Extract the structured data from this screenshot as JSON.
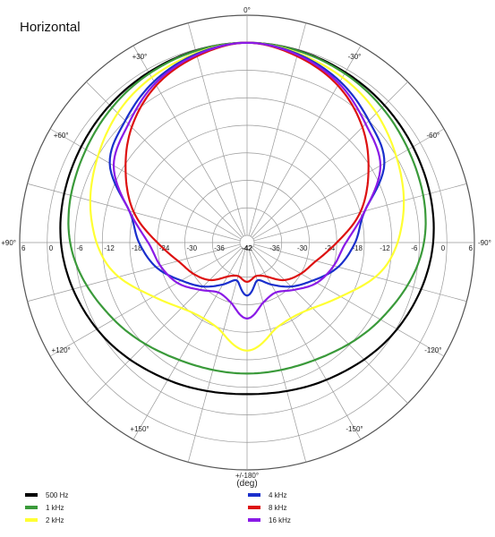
{
  "chart_data": {
    "type": "polar",
    "title": "Horizontal",
    "xlabel": "(deg)",
    "radial_unit": "dB",
    "r_range": [
      -42,
      6
    ],
    "radial_ticks": [
      "6",
      "0",
      "-6",
      "-12",
      "-18",
      "-24",
      "-30",
      "-36",
      "-42"
    ],
    "angle_labels": [
      {
        "deg": 0,
        "label": "0°"
      },
      {
        "deg": 30,
        "label": "-30°"
      },
      {
        "deg": 60,
        "label": "-60°"
      },
      {
        "deg": 90,
        "label": "-90°"
      },
      {
        "deg": 120,
        "label": "-120°"
      },
      {
        "deg": 150,
        "label": "-150°"
      },
      {
        "deg": 180,
        "label": "+/-180°"
      },
      {
        "deg": 210,
        "label": "+150°"
      },
      {
        "deg": 240,
        "label": "+120°"
      },
      {
        "deg": 270,
        "label": "+90°"
      },
      {
        "deg": 300,
        "label": "+60°"
      },
      {
        "deg": 330,
        "label": "+30°"
      }
    ],
    "grid": true,
    "legend_position": "bottom",
    "series": [
      {
        "name": "500 Hz",
        "color": "#000000",
        "angles": [
          0,
          30,
          60,
          90,
          120,
          150,
          180,
          210,
          240,
          270,
          300,
          330
        ],
        "values": [
          0,
          -0.7,
          -1.8,
          -3,
          -5.8,
          -9,
          -10.5,
          -9,
          -5.8,
          -3,
          -1.8,
          -0.7
        ]
      },
      {
        "name": "1 kHz",
        "color": "#3a9a3a",
        "angles": [
          0,
          30,
          60,
          90,
          120,
          150,
          180,
          210,
          240,
          270,
          300,
          330
        ],
        "values": [
          0,
          -1,
          -3,
          -5,
          -10,
          -14,
          -15,
          -14,
          -10,
          -5,
          -3,
          -1
        ]
      },
      {
        "name": "2 kHz",
        "color": "#ffff33",
        "angles": [
          0,
          20,
          40,
          60,
          80,
          100,
          120,
          140,
          160,
          180,
          200,
          220,
          240,
          260,
          280,
          300,
          320,
          340
        ],
        "values": [
          0,
          -1.2,
          -3,
          -6,
          -9,
          -13,
          -20,
          -24,
          -24,
          -20,
          -24,
          -24,
          -20,
          -13,
          -9,
          -6,
          -3,
          -1.2
        ]
      },
      {
        "name": "4 kHz",
        "color": "#1a2fcc",
        "angles": [
          0,
          15,
          30,
          45,
          60,
          75,
          90,
          105,
          120,
          135,
          150,
          165,
          180,
          195,
          210,
          225,
          240,
          255,
          270,
          285,
          300,
          315,
          330,
          345
        ],
        "values": [
          0,
          -1,
          -3,
          -6,
          -9,
          -17,
          -20,
          -23,
          -27,
          -30,
          -33,
          -35,
          -32,
          -35,
          -33,
          -30,
          -27,
          -23,
          -20,
          -17,
          -9,
          -6,
          -3,
          -1
        ]
      },
      {
        "name": "8 kHz",
        "color": "#dd1111",
        "angles": [
          0,
          15,
          30,
          45,
          60,
          75,
          90,
          105,
          120,
          135,
          150,
          165,
          180,
          195,
          210,
          225,
          240,
          255,
          270,
          285,
          300,
          315,
          330,
          345
        ],
        "values": [
          0,
          -1.5,
          -4,
          -8,
          -13,
          -18,
          -24,
          -28,
          -30,
          -32,
          -35,
          -36,
          -35,
          -36,
          -35,
          -32,
          -30,
          -28,
          -24,
          -18,
          -13,
          -8,
          -4,
          -1.5
        ]
      },
      {
        "name": "16 kHz",
        "color": "#8a1ae6",
        "angles": [
          0,
          15,
          30,
          45,
          60,
          75,
          90,
          105,
          120,
          135,
          150,
          165,
          180,
          195,
          210,
          225,
          240,
          255,
          270,
          285,
          300,
          315,
          330,
          345
        ],
        "values": [
          0,
          -1.2,
          -3.5,
          -7,
          -10,
          -17,
          -22,
          -24,
          -26,
          -29,
          -31,
          -30,
          -27,
          -30,
          -31,
          -29,
          -26,
          -24,
          -22,
          -17,
          -10,
          -7,
          -3.5,
          -1.2
        ]
      }
    ]
  }
}
